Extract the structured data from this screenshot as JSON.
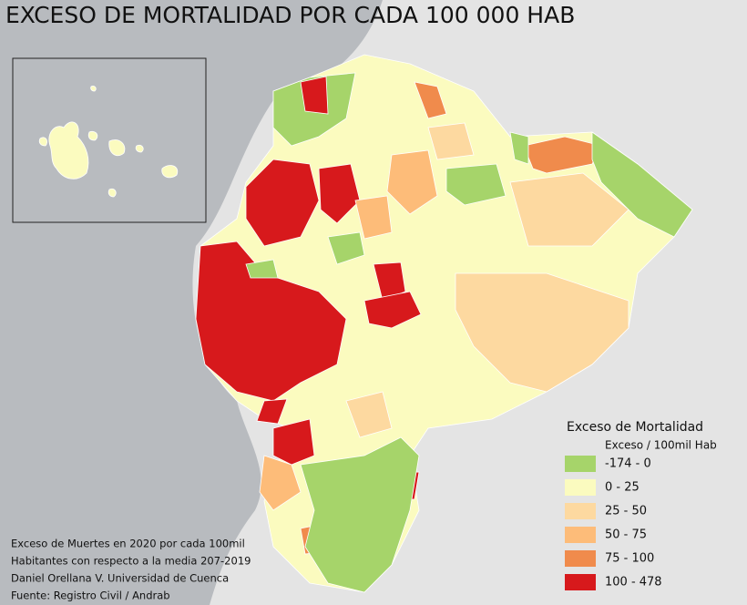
{
  "header": {
    "title": "EXCESO DE MORTALIDAD POR CADA 100 000 HAB"
  },
  "legend": {
    "title": "Exceso de Mortalidad",
    "subtitle": "Exceso / 100mil Hab",
    "items": [
      {
        "label": "-174 - 0",
        "color": "#a6d46a"
      },
      {
        "label": "0 - 25",
        "color": "#fbfbbf"
      },
      {
        "label": "25 - 50",
        "color": "#fdd9a0"
      },
      {
        "label": "50 - 75",
        "color": "#fdbc79"
      },
      {
        "label": "75 - 100",
        "color": "#f08b4c"
      },
      {
        "label": "100 - 478",
        "color": "#d7191c"
      }
    ]
  },
  "notes": [
    "Exceso de Muertes en 2020 por cada 100mil",
    "Habitantes con respecto a la media 207-2019",
    "Daniel Orellana V. Universidad de Cuenca",
    "Fuente: Registro Civil / Andrab"
  ]
}
